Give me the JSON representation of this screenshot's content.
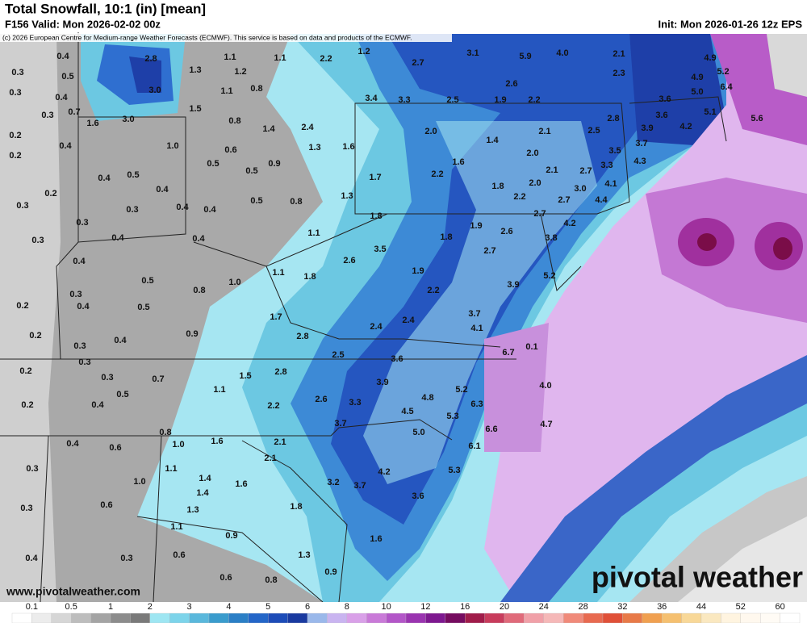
{
  "header": {
    "title": "Total Snowfall, 10:1 (in) [mean]",
    "valid": "F156 Valid: Mon 2026-02-02 00z",
    "init": "Init: Mon 2026-01-26 12z EPS",
    "copyright": "(c) 2026 European Centre for Medium-range Weather Forecasts (ECMWF). This service is based on data and products of the ECMWF."
  },
  "map_labels": [
    "0.4",
    "2.8",
    "1.1",
    "1.1",
    "2.2",
    "1.2",
    "2.7",
    "3.1",
    "5.9",
    "4.0",
    "2.1",
    "4.9",
    "0.3",
    "0.5",
    "1.3",
    "1.2",
    "2.3",
    "4.9",
    "5.2",
    "0.3",
    "0.4",
    "3.0",
    "1.1",
    "0.8",
    "2.6",
    "6.4",
    "5.0",
    "3.4",
    "3.3",
    "2.5",
    "1.9",
    "2.2",
    "3.6",
    "0.3",
    "0.7",
    "1.5",
    "5.1",
    "3.6",
    "1.6",
    "3.0",
    "0.8",
    "2.8",
    "5.6",
    "0.2",
    "1.4",
    "2.4",
    "2.0",
    "2.1",
    "2.5",
    "3.9",
    "4.2",
    "0.4",
    "1.0",
    "0.6",
    "1.3",
    "1.6",
    "1.4",
    "3.7",
    "3.5",
    "0.2",
    "2.0",
    "4.3",
    "1.6",
    "3.3",
    "0.5",
    "0.9",
    "0.4",
    "0.5",
    "0.5",
    "1.7",
    "2.2",
    "2.1",
    "2.7",
    "4.1",
    "0.2",
    "0.4",
    "1.8",
    "2.0",
    "0.5",
    "0.8",
    "1.3",
    "2.2",
    "2.7",
    "3.0",
    "4.4",
    "0.3",
    "0.3",
    "0.4",
    "0.4",
    "1.8",
    "2.7",
    "4.2",
    "0.3",
    "1.9",
    "2.6",
    "1.1",
    "1.8",
    "3.8",
    "0.3",
    "0.4",
    "0.4",
    "2.7",
    "2.6",
    "3.5",
    "0.4",
    "1.1",
    "1.8",
    "1.9",
    "5.2",
    "0.5",
    "1.0",
    "0.8",
    "3.9",
    "2.2",
    "0.3",
    "0.5",
    "0.2",
    "0.4",
    "1.7",
    "3.7",
    "2.4",
    "2.4",
    "4.1",
    "0.9",
    "2.8",
    "0.2",
    "0.3",
    "0.4",
    "0.1",
    "6.7",
    "0.3",
    "2.5",
    "3.6",
    "1.5",
    "2.8",
    "3.9",
    "0.2",
    "0.3",
    "0.7",
    "5.2",
    "4.0",
    "1.1",
    "0.5",
    "2.6",
    "3.3",
    "4.8",
    "0.2",
    "0.4",
    "2.2",
    "4.5",
    "6.3",
    "5.3",
    "3.7",
    "6.6",
    "4.7",
    "5.0",
    "0.8",
    "1.0",
    "1.6",
    "2.1",
    "6.1",
    "0.4",
    "0.6",
    "2.1",
    "5.3",
    "0.3",
    "1.1",
    "1.4",
    "4.2",
    "1.0",
    "1.6",
    "3.2",
    "3.7",
    "1.4",
    "3.6",
    "0.3",
    "0.6",
    "1.3",
    "1.8",
    "1.1",
    "0.9",
    "1.6",
    "0.6",
    "0.3",
    "0.4",
    "1.3",
    "0.6",
    "0.8",
    "0.9"
  ],
  "footer": {
    "url": "www.pivotalweather.com",
    "logo": "pivotal weather"
  },
  "legend": {
    "labels": [
      "0.1",
      "0.5",
      "1",
      "2",
      "3",
      "4",
      "5",
      "6",
      "8",
      "10",
      "12",
      "16",
      "20",
      "24",
      "28",
      "32",
      "36",
      "44",
      "52",
      "60"
    ]
  }
}
